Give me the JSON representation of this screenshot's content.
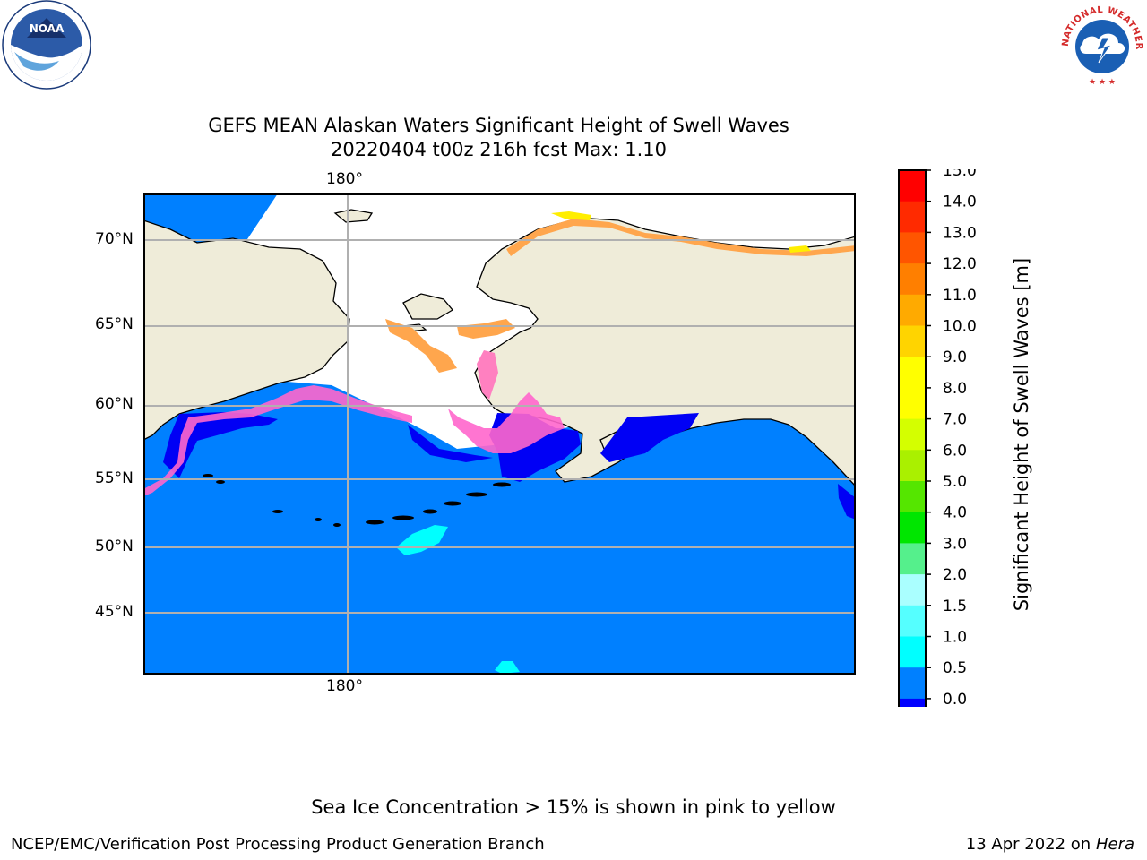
{
  "title": {
    "line1": "GEFS MEAN Alaskan Waters Significant Height of Swell Waves",
    "line2": "20220404 t00z 216h fcst   Max: 1.10"
  },
  "map": {
    "top_lon_label": "180°",
    "bottom_lon_label": "180°",
    "lat_labels": [
      "70°N",
      "65°N",
      "60°N",
      "55°N",
      "50°N",
      "45°N"
    ],
    "colors": {
      "land": "#efecd9",
      "ocean_0_5_1_0": "#0080ff",
      "ocean_0_0_0_5": "#0000f5",
      "ice_low": "#ff66cc",
      "ice_mid": "#ffa64d",
      "ice_high": "#ffee00",
      "swell_1_0_1_5": "#00ffff",
      "gridline": "#b0b0b0",
      "coast": "#000000"
    }
  },
  "colorbar": {
    "label": "Significant Height of Swell Waves [m]",
    "ticks": [
      "15.0",
      "14.0",
      "13.0",
      "12.0",
      "11.0",
      "10.0",
      "9.0",
      "8.0",
      "7.0",
      "6.0",
      "5.0",
      "4.0",
      "3.0",
      "2.0",
      "1.5",
      "1.0",
      "0.5",
      "0.0"
    ],
    "segment_colors": [
      "#ff0000",
      "#ff2a00",
      "#ff5500",
      "#ff7f00",
      "#ffaa00",
      "#ffd400",
      "#ffff00",
      "#ffff00",
      "#d4ff00",
      "#aaf000",
      "#55e600",
      "#00e600",
      "#55f08c",
      "#aaffff",
      "#55ffff",
      "#00ffff",
      "#0080ff",
      "#0000ff"
    ]
  },
  "notes": {
    "sea_ice": "Sea Ice Concentration > 15% is shown in pink to yellow"
  },
  "credits": {
    "left": "NCEP/EMC/Verification Post Processing Product Generation Branch",
    "right_date": "13 Apr 2022 on ",
    "right_host": "Hera"
  },
  "logos": {
    "noaa_text": "NOAA",
    "nws_text": "NATIONAL WEATHER SERVICE"
  }
}
